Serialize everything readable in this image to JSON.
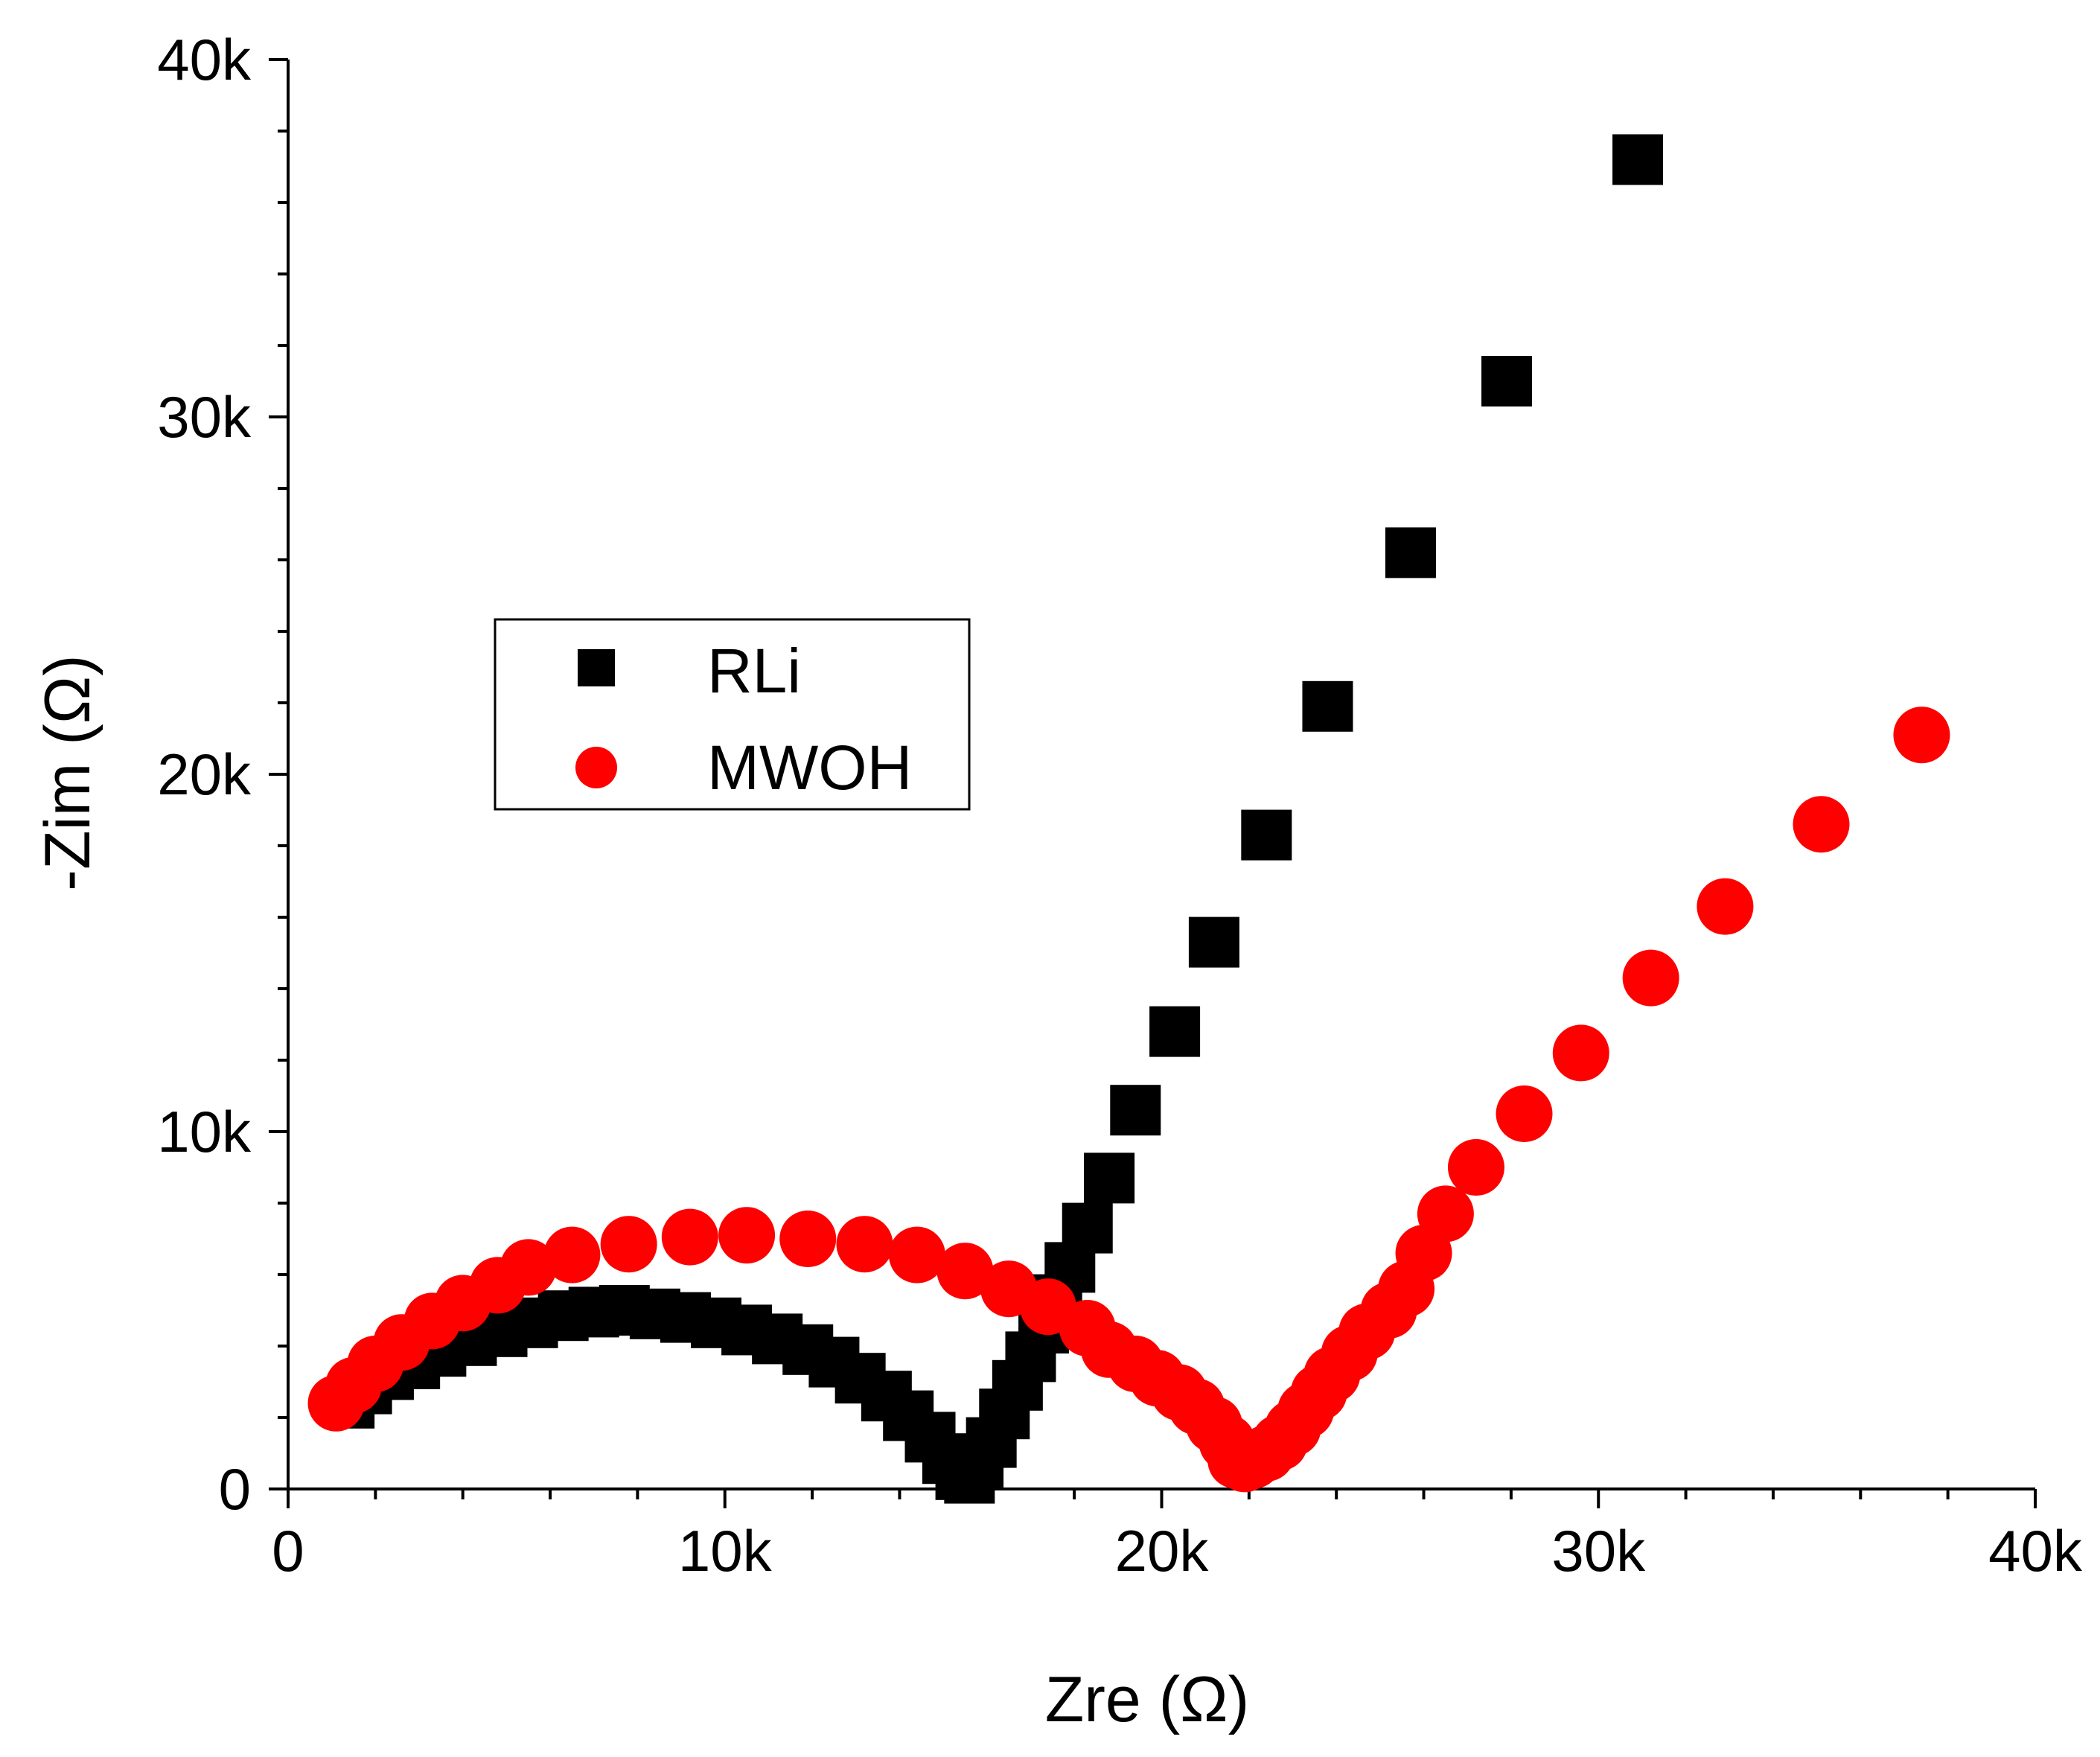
{
  "chart_data": {
    "type": "scatter",
    "title": "",
    "xlabel": "Zre (Ω)",
    "ylabel": "-Zim (Ω)",
    "xlim": [
      0,
      40000
    ],
    "ylim": [
      0,
      40000
    ],
    "x_ticks": [
      {
        "value": 0,
        "label": "0"
      },
      {
        "value": 10000,
        "label": "10k"
      },
      {
        "value": 20000,
        "label": "20k"
      },
      {
        "value": 30000,
        "label": "30k"
      },
      {
        "value": 40000,
        "label": "40k"
      }
    ],
    "y_ticks": [
      {
        "value": 0,
        "label": "0"
      },
      {
        "value": 10000,
        "label": "10k"
      },
      {
        "value": 20000,
        "label": "20k"
      },
      {
        "value": 30000,
        "label": "30k"
      },
      {
        "value": 40000,
        "label": "40k"
      }
    ],
    "grid": false,
    "legend_position": "center-left",
    "series": [
      {
        "name": "RLi",
        "marker": "square",
        "color": "#000000",
        "points": [
          [
            1400,
            2400
          ],
          [
            1800,
            2800
          ],
          [
            2300,
            3200
          ],
          [
            2900,
            3500
          ],
          [
            3500,
            3850
          ],
          [
            4200,
            4150
          ],
          [
            4900,
            4400
          ],
          [
            5600,
            4650
          ],
          [
            6300,
            4850
          ],
          [
            7000,
            4950
          ],
          [
            7700,
            5000
          ],
          [
            8400,
            4900
          ],
          [
            9100,
            4800
          ],
          [
            9800,
            4650
          ],
          [
            10500,
            4450
          ],
          [
            11200,
            4200
          ],
          [
            11900,
            3900
          ],
          [
            12500,
            3550
          ],
          [
            13100,
            3100
          ],
          [
            13700,
            2600
          ],
          [
            14200,
            2050
          ],
          [
            14700,
            1450
          ],
          [
            15100,
            850
          ],
          [
            15400,
            400
          ],
          [
            15600,
            300
          ],
          [
            15800,
            700
          ],
          [
            16100,
            1300
          ],
          [
            16400,
            2100
          ],
          [
            16700,
            2900
          ],
          [
            17000,
            3700
          ],
          [
            17300,
            4500
          ],
          [
            17600,
            5300
          ],
          [
            17900,
            6200
          ],
          [
            18300,
            7300
          ],
          [
            18800,
            8700
          ],
          [
            19400,
            10600
          ],
          [
            20300,
            12800
          ],
          [
            21200,
            15300
          ],
          [
            22400,
            18300
          ],
          [
            23800,
            21900
          ],
          [
            25700,
            26200
          ],
          [
            27900,
            31000
          ],
          [
            30900,
            37200
          ]
        ]
      },
      {
        "name": "MWOH",
        "marker": "circle",
        "color": "#ff0000",
        "points": [
          [
            1100,
            2400
          ],
          [
            1500,
            2900
          ],
          [
            2000,
            3500
          ],
          [
            2600,
            4100
          ],
          [
            3300,
            4700
          ],
          [
            4000,
            5200
          ],
          [
            4800,
            5700
          ],
          [
            5500,
            6200
          ],
          [
            6500,
            6550
          ],
          [
            7800,
            6850
          ],
          [
            9200,
            7050
          ],
          [
            10500,
            7100
          ],
          [
            11900,
            7000
          ],
          [
            13200,
            6850
          ],
          [
            14400,
            6550
          ],
          [
            15500,
            6100
          ],
          [
            16500,
            5600
          ],
          [
            17400,
            5100
          ],
          [
            18300,
            4500
          ],
          [
            18800,
            3900
          ],
          [
            19400,
            3500
          ],
          [
            19900,
            3100
          ],
          [
            20400,
            2700
          ],
          [
            20800,
            2300
          ],
          [
            21200,
            1800
          ],
          [
            21500,
            1300
          ],
          [
            21700,
            800
          ],
          [
            21900,
            700
          ],
          [
            22100,
            800
          ],
          [
            22400,
            1000
          ],
          [
            22700,
            1300
          ],
          [
            23000,
            1700
          ],
          [
            23300,
            2200
          ],
          [
            23600,
            2700
          ],
          [
            23900,
            3200
          ],
          [
            24300,
            3800
          ],
          [
            24700,
            4400
          ],
          [
            25200,
            5000
          ],
          [
            25600,
            5600
          ],
          [
            26000,
            6600
          ],
          [
            26500,
            7700
          ],
          [
            27200,
            9000
          ],
          [
            28300,
            10500
          ],
          [
            29600,
            12200
          ],
          [
            31200,
            14300
          ],
          [
            32900,
            16300
          ],
          [
            35100,
            18600
          ],
          [
            37400,
            21100
          ]
        ]
      }
    ]
  }
}
